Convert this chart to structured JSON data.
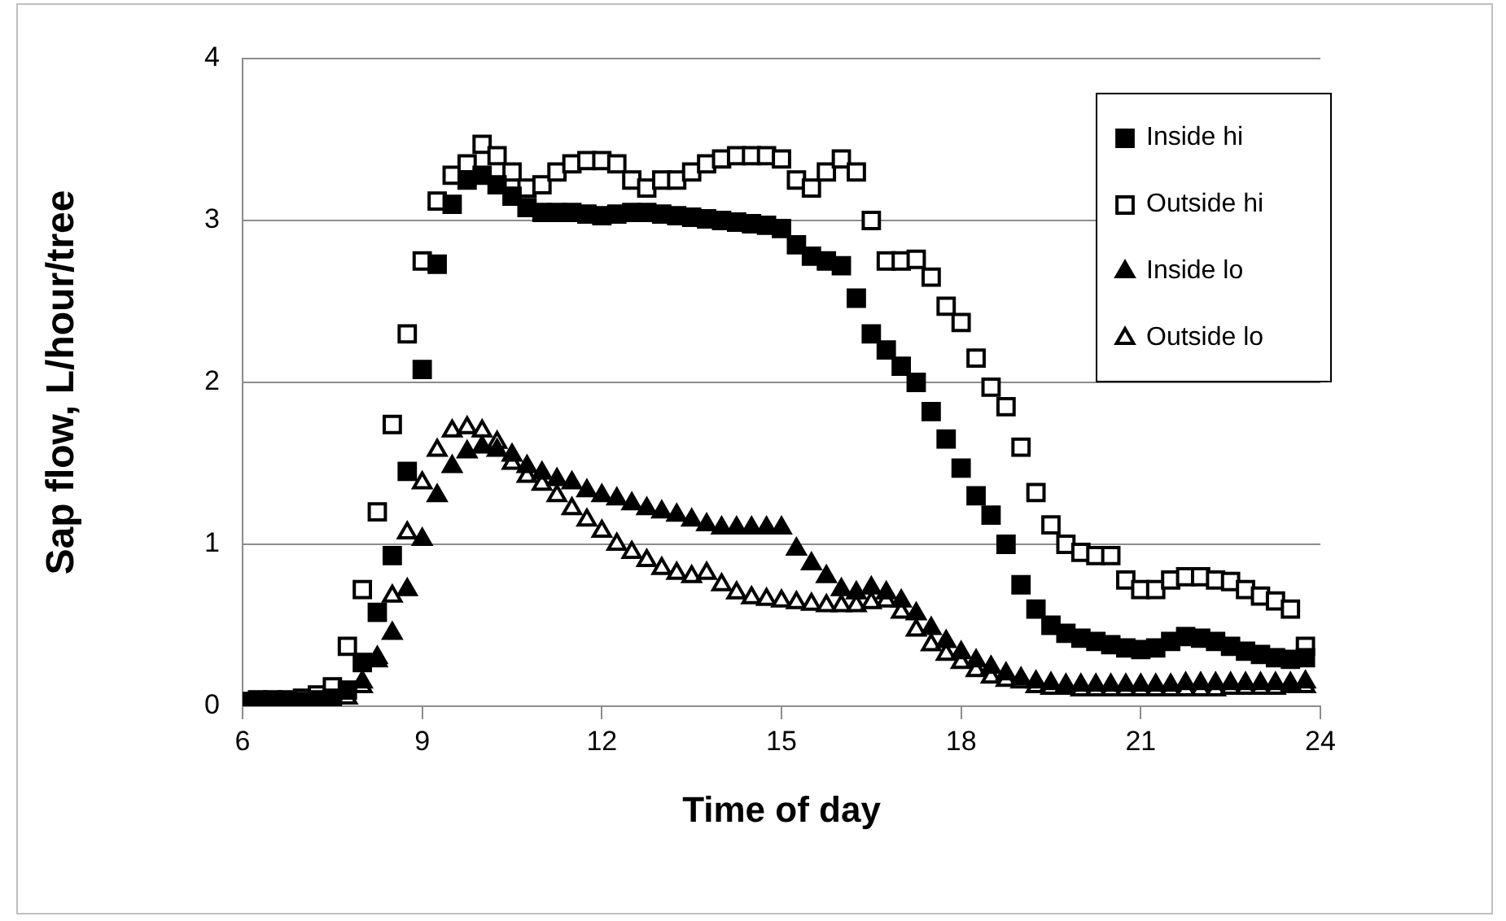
{
  "chart_data": {
    "type": "scatter",
    "xlabel": "Time of day",
    "ylabel": "Sap flow, L/hour/tree",
    "x": [
      6,
      6.25,
      6.5,
      6.75,
      7,
      7.25,
      7.5,
      7.75,
      8,
      8.25,
      8.5,
      8.75,
      9,
      9.25,
      9.5,
      9.75,
      10,
      10.25,
      10.5,
      10.75,
      11,
      11.25,
      11.5,
      11.75,
      12,
      12.25,
      12.5,
      12.75,
      13,
      13.25,
      13.5,
      13.75,
      14,
      14.25,
      14.5,
      14.75,
      15,
      15.25,
      15.5,
      15.75,
      16,
      16.25,
      16.5,
      16.75,
      17,
      17.25,
      17.5,
      17.75,
      18,
      18.25,
      18.5,
      18.75,
      19,
      19.25,
      19.5,
      19.75,
      20,
      20.25,
      20.5,
      20.75,
      21,
      21.25,
      21.5,
      21.75,
      22,
      22.25,
      22.5,
      22.75,
      23,
      23.25,
      23.5,
      23.75
    ],
    "series": [
      {
        "name": "Inside hi",
        "color": "#000000",
        "marker": "square",
        "values": [
          0.03,
          0.03,
          0.03,
          0.03,
          0.03,
          0.04,
          0.05,
          0.1,
          0.27,
          0.58,
          0.93,
          1.45,
          2.08,
          2.73,
          3.1,
          3.25,
          3.28,
          3.22,
          3.15,
          3.08,
          3.05,
          3.05,
          3.05,
          3.04,
          3.03,
          3.04,
          3.05,
          3.05,
          3.04,
          3.03,
          3.02,
          3.01,
          3.0,
          2.99,
          2.98,
          2.97,
          2.95,
          2.85,
          2.78,
          2.75,
          2.72,
          2.52,
          2.3,
          2.2,
          2.1,
          2.0,
          1.82,
          1.65,
          1.47,
          1.3,
          1.18,
          1.0,
          0.75,
          0.6,
          0.5,
          0.45,
          0.42,
          0.4,
          0.38,
          0.36,
          0.35,
          0.36,
          0.4,
          0.43,
          0.42,
          0.4,
          0.37,
          0.34,
          0.32,
          0.3,
          0.29,
          0.3
        ]
      },
      {
        "name": "Outside hi",
        "color": "#ffffff",
        "marker": "square",
        "values": [
          null,
          0.04,
          0.04,
          0.04,
          0.05,
          0.07,
          0.12,
          0.37,
          0.72,
          1.2,
          1.74,
          2.3,
          2.75,
          3.12,
          3.28,
          3.35,
          3.47,
          3.4,
          3.3,
          3.2,
          3.22,
          3.3,
          3.35,
          3.37,
          3.37,
          3.35,
          3.25,
          3.2,
          3.25,
          3.25,
          3.3,
          3.35,
          3.38,
          3.4,
          3.4,
          3.4,
          3.38,
          3.25,
          3.2,
          3.3,
          3.38,
          3.3,
          3.0,
          2.75,
          2.75,
          2.76,
          2.65,
          2.47,
          2.37,
          2.15,
          1.97,
          1.85,
          1.6,
          1.32,
          1.12,
          1.0,
          0.95,
          0.93,
          0.93,
          0.78,
          0.72,
          0.72,
          0.78,
          0.8,
          0.8,
          0.78,
          0.77,
          0.72,
          0.68,
          0.65,
          0.6,
          0.37
        ]
      },
      {
        "name": "Inside lo",
        "color": "#000000",
        "marker": "triangle",
        "values": [
          null,
          null,
          null,
          null,
          null,
          null,
          null,
          null,
          0.15,
          0.28,
          0.45,
          0.72,
          1.03,
          1.3,
          1.48,
          1.57,
          1.6,
          1.58,
          1.55,
          1.48,
          1.44,
          1.4,
          1.38,
          1.33,
          1.3,
          1.28,
          1.25,
          1.22,
          1.2,
          1.18,
          1.15,
          1.12,
          1.1,
          1.1,
          1.1,
          1.1,
          1.1,
          0.97,
          0.88,
          0.8,
          0.72,
          0.7,
          0.73,
          0.7,
          0.65,
          0.57,
          0.48,
          0.4,
          0.33,
          0.28,
          0.24,
          0.2,
          0.17,
          0.15,
          0.14,
          0.13,
          0.13,
          0.13,
          0.13,
          0.13,
          0.13,
          0.13,
          0.13,
          0.14,
          0.14,
          0.14,
          0.14,
          0.14,
          0.14,
          0.14,
          0.14,
          0.15
        ]
      },
      {
        "name": "Outside lo",
        "color": "#ffffff",
        "marker": "triangle",
        "values": [
          null,
          null,
          null,
          null,
          null,
          null,
          null,
          0.05,
          0.12,
          0.3,
          0.68,
          1.07,
          1.38,
          1.58,
          1.7,
          1.72,
          1.7,
          1.63,
          1.5,
          1.42,
          1.37,
          1.3,
          1.22,
          1.15,
          1.08,
          1.0,
          0.95,
          0.9,
          0.85,
          0.82,
          0.8,
          0.82,
          0.75,
          0.7,
          0.67,
          0.66,
          0.65,
          0.64,
          0.63,
          0.62,
          0.62,
          0.62,
          0.64,
          0.65,
          0.58,
          0.47,
          0.38,
          0.32,
          0.27,
          0.22,
          0.18,
          0.16,
          0.15,
          0.12,
          0.11,
          0.11,
          0.1,
          0.1,
          0.1,
          0.1,
          0.1,
          0.1,
          0.1,
          0.1,
          0.1,
          0.1,
          0.11,
          0.11,
          0.11,
          0.11,
          0.12,
          0.12
        ]
      }
    ],
    "xlim": [
      6,
      24
    ],
    "xticks": [
      6,
      9,
      12,
      15,
      18,
      21,
      24
    ],
    "ylim": [
      0,
      4
    ],
    "yticks": [
      0,
      1,
      2,
      3,
      4
    ],
    "grid": "y",
    "legend": "top right"
  }
}
